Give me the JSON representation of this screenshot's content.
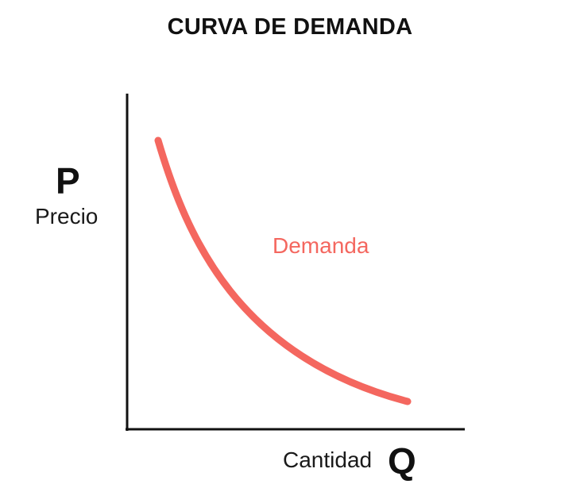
{
  "title": "CURVA DE DEMANDA",
  "y_axis": {
    "symbol": "P",
    "label": "Precio"
  },
  "x_axis": {
    "symbol": "Q",
    "label": "Cantidad"
  },
  "curve": {
    "label": "Demanda",
    "color": "#f4675f"
  },
  "axis_color": "#111111"
}
